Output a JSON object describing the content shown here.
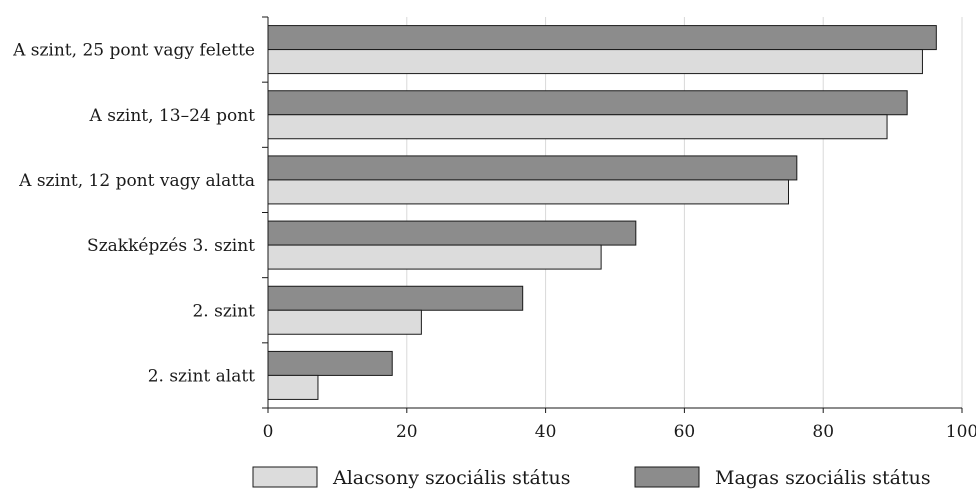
{
  "chart_data": {
    "type": "bar",
    "orientation": "horizontal",
    "categories": [
      "A szint, 25 pont vagy felette",
      "A szint, 13–24 pont",
      "A szint, 12 pont vagy alatta",
      "Szakképzés 3. szint",
      "2. szint",
      "2. szint alatt"
    ],
    "series": [
      {
        "name": "Magas szociális státus",
        "color": "#8c8c8c",
        "values": [
          96.3,
          92.1,
          76.2,
          53.0,
          36.7,
          17.9
        ]
      },
      {
        "name": "Alacsony szociális státus",
        "color": "#dcdcdc",
        "values": [
          94.3,
          89.2,
          75.0,
          48.0,
          22.1,
          7.2
        ]
      }
    ],
    "xlim": [
      0,
      100
    ],
    "xticks": [
      0,
      20,
      40,
      60,
      80,
      100
    ],
    "grid": "vertical",
    "legend": "bottom",
    "legend_order": [
      "Alacsony szociális státus",
      "Magas szociális státus"
    ],
    "title": "",
    "xlabel": "",
    "ylabel": ""
  }
}
